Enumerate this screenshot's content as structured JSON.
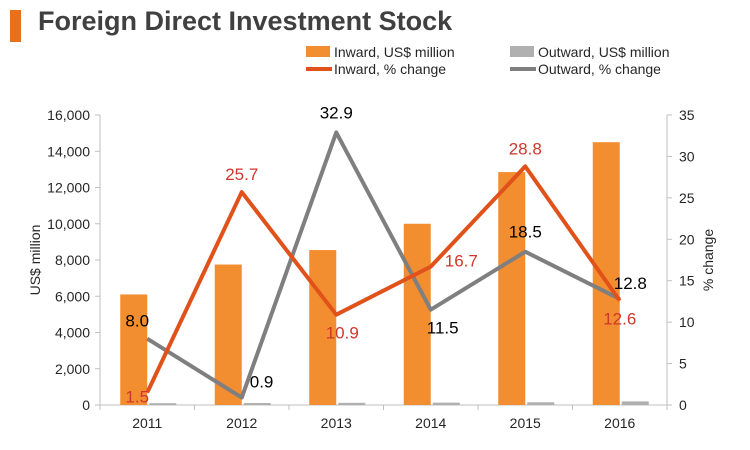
{
  "title": "Foreign Direct Investment Stock",
  "colors": {
    "accent": "#E8701D",
    "inward_bar": "#F28E2F",
    "outward_bar": "#B0B0B0",
    "inward_line": "#E0521A",
    "outward_line": "#7F7F7F",
    "inward_label": "#D0362B",
    "outward_label": "#000000",
    "axis_text": "#262626"
  },
  "chart_data": {
    "type": "bar",
    "title": "Foreign Direct Investment Stock",
    "categories": [
      "2011",
      "2012",
      "2013",
      "2014",
      "2015",
      "2016"
    ],
    "ylabel": "US$ million",
    "y2label": "% change",
    "ylim": [
      0,
      16000
    ],
    "y2lim": [
      0,
      35
    ],
    "yticks": [
      "0",
      "2,000",
      "4,000",
      "6,000",
      "8,000",
      "10,000",
      "12,000",
      "14,000",
      "16,000"
    ],
    "y2ticks": [
      "0",
      "5",
      "10",
      "15",
      "20",
      "25",
      "30",
      "35"
    ],
    "legend_placement": "top",
    "series": [
      {
        "name": "Inward, US$ million",
        "kind": "bar",
        "axis": "left",
        "values": [
          6100,
          7750,
          8550,
          10000,
          12850,
          14500
        ]
      },
      {
        "name": "Outward, US$ million",
        "kind": "bar",
        "axis": "left",
        "values": [
          100,
          110,
          120,
          130,
          150,
          200
        ]
      },
      {
        "name": "Inward, % change",
        "kind": "line",
        "axis": "right",
        "values": [
          1.5,
          25.7,
          10.9,
          16.7,
          28.8,
          12.6
        ],
        "labels": [
          "1.5",
          "25.7",
          "10.9",
          "16.7",
          "28.8",
          "12.6"
        ]
      },
      {
        "name": "Outward, % change",
        "kind": "line",
        "axis": "right",
        "values": [
          8.0,
          0.9,
          32.9,
          11.5,
          18.5,
          12.8
        ],
        "labels": [
          "8.0",
          "0.9",
          "32.9",
          "11.5",
          "18.5",
          "12.8"
        ]
      }
    ]
  }
}
